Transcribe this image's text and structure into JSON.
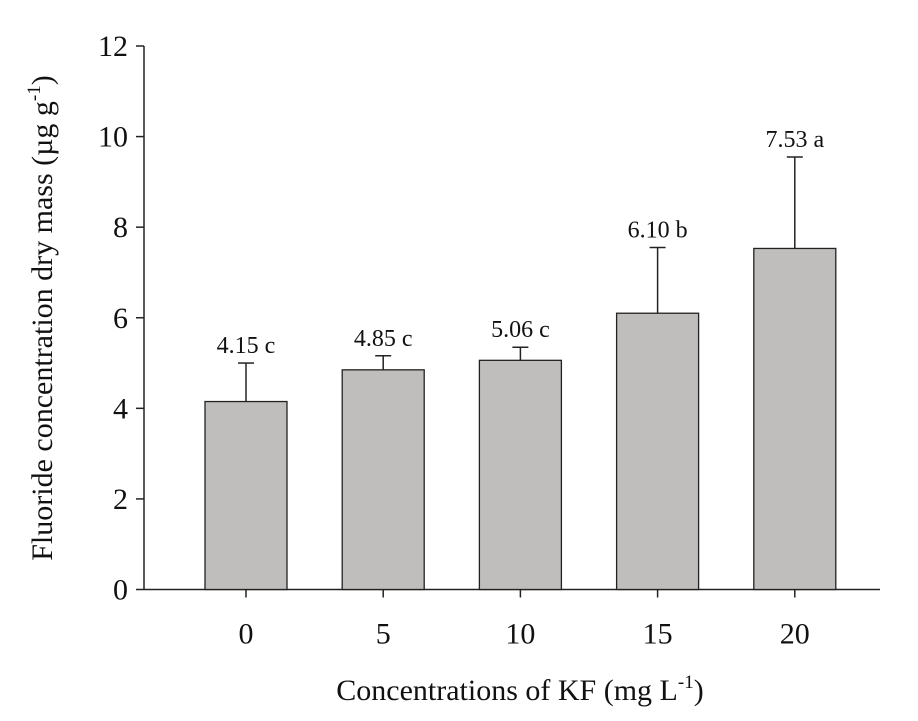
{
  "chart_data": {
    "type": "bar",
    "categories": [
      "0",
      "5",
      "10",
      "15",
      "20"
    ],
    "values": [
      4.15,
      4.85,
      5.06,
      6.1,
      7.53
    ],
    "error_upper": [
      5.0,
      5.16,
      5.35,
      7.55,
      9.55
    ],
    "data_labels": [
      "4.15 c",
      "4.85 c",
      "5.06 c",
      "6.10 b",
      "7.53 a"
    ],
    "xlabel": "Concentrations of KF (mg L",
    "xlabel_sup": "-1",
    "xlabel_end": ")",
    "ylabel": "Fluoride concentration dry mass (µg g",
    "ylabel_sup": "-1",
    "ylabel_end": ")",
    "ylim": [
      0,
      12
    ],
    "yticks": [
      0,
      2,
      4,
      6,
      8,
      10,
      12
    ],
    "grid": false,
    "bar_color": "#bfbebc"
  }
}
